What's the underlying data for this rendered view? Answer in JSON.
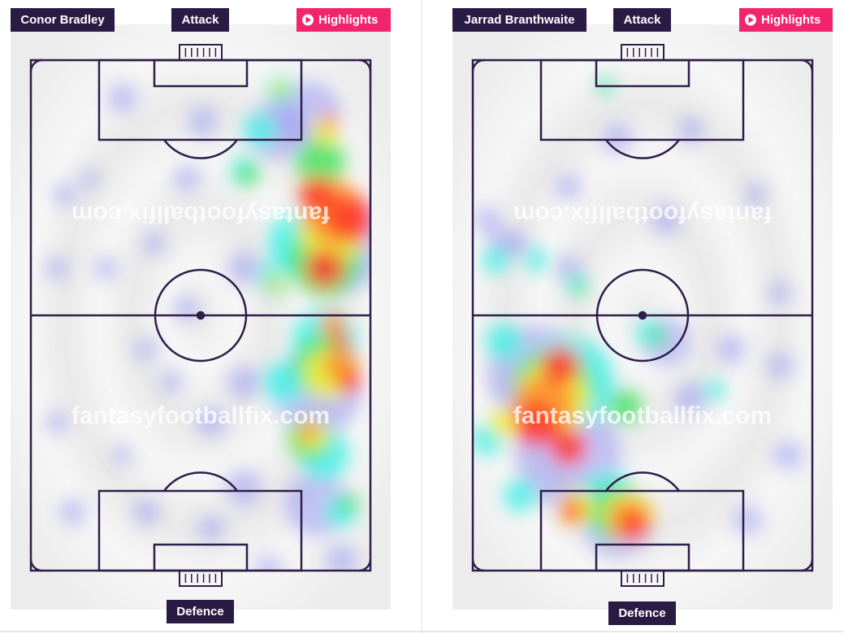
{
  "panels": [
    {
      "player": "Conor Bradley",
      "top_label": "Attack",
      "button": "Highlights",
      "bottom_label": "Defence",
      "watermark": "fantasyfootballfix.com"
    },
    {
      "player": "Jarrad Branthwaite",
      "top_label": "Attack",
      "button": "Highlights",
      "bottom_label": "Defence",
      "watermark": "fantasyfootballfix.com"
    }
  ]
}
